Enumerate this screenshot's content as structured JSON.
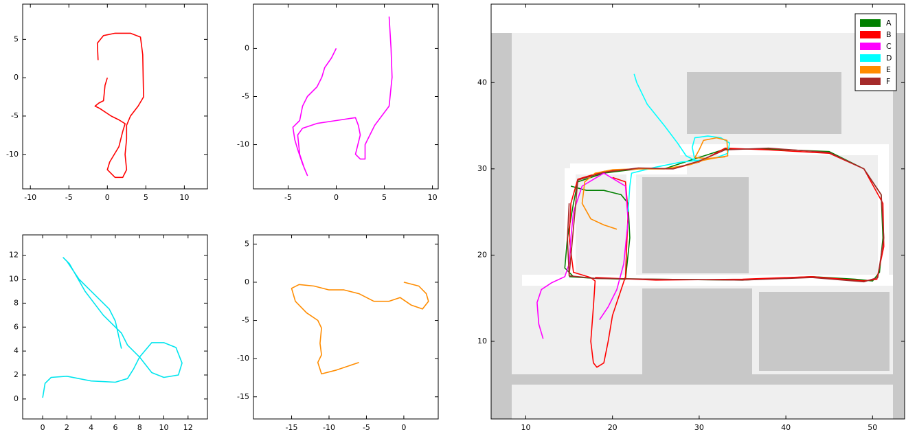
{
  "chart_data": [
    {
      "type": "line",
      "xlim": [
        -11,
        13
      ],
      "ylim": [
        -14.5,
        9.6
      ],
      "xticks": [
        -10,
        -5,
        0,
        5,
        10
      ],
      "yticks": [
        -10,
        -5,
        0,
        5
      ],
      "series": [
        {
          "color": "#ff0000",
          "x": [
            -1.2,
            -1.3,
            -0.5,
            1,
            3,
            4.3,
            4.6,
            4.7,
            4,
            3,
            2.5,
            2.5,
            2.3,
            2.5,
            2,
            1,
            0,
            0.3,
            1.5,
            2,
            2.3,
            1.5,
            0.5,
            -1,
            -1.6,
            -1.1,
            -0.5,
            -0.3,
            0
          ],
          "values": [
            2.3,
            4.5,
            5.5,
            5.8,
            5.8,
            5.3,
            3,
            -2.5,
            -3.7,
            -5,
            -6.2,
            -8,
            -10,
            -12,
            -13,
            -13,
            -12,
            -11,
            -9,
            -7,
            -6,
            -5.5,
            -5,
            -4,
            -3.7,
            -3.3,
            -3,
            -1,
            0
          ]
        }
      ]
    },
    {
      "type": "line",
      "xlim": [
        -8.6,
        10.6
      ],
      "ylim": [
        -14.6,
        4.6
      ],
      "xticks": [
        -5,
        0,
        5,
        10
      ],
      "yticks": [
        -10,
        -5,
        0
      ],
      "series": [
        {
          "color": "#ff00ff",
          "x": [
            0,
            -0.5,
            -1.2,
            -1.5,
            -2,
            -3,
            -3.5,
            -3.8,
            -4.5,
            -4.3,
            -4,
            -3.5,
            -3,
            -3.3,
            -3.8,
            -4,
            -3.5,
            -2,
            0,
            2,
            2.3,
            2.5,
            2,
            2.5,
            3,
            3,
            4,
            5.5,
            5.8,
            5.7,
            5.5
          ],
          "values": [
            0,
            -1,
            -2,
            -3,
            -4,
            -5,
            -6,
            -7.5,
            -8.2,
            -9.5,
            -10.5,
            -12,
            -13.2,
            -12.5,
            -11,
            -9,
            -8.3,
            -7.8,
            -7.5,
            -7.2,
            -8,
            -9,
            -11,
            -11.5,
            -11.5,
            -10,
            -8,
            -6,
            -3,
            0,
            3.3
          ]
        }
      ]
    },
    {
      "type": "line",
      "xlim": [
        -1.65,
        13.6
      ],
      "ylim": [
        -1.67,
        13.7
      ],
      "xticks": [
        0,
        2,
        4,
        6,
        8,
        10,
        12
      ],
      "yticks": [
        0,
        2,
        4,
        6,
        8,
        10,
        12
      ],
      "series": [
        {
          "color": "#00e5ee",
          "x": [
            0,
            0.2,
            0.7,
            2,
            4,
            6,
            7,
            7.5,
            8,
            9,
            10,
            11,
            11.5,
            11.2,
            10,
            9,
            8,
            7,
            6.5,
            5,
            3.5,
            2.2,
            1.7,
            2,
            3,
            4.5,
            5.5,
            6,
            6.5
          ],
          "values": [
            0.1,
            1.3,
            1.8,
            1.9,
            1.5,
            1.4,
            1.7,
            2.5,
            3.5,
            4.7,
            4.7,
            4.3,
            3,
            2,
            1.8,
            2.2,
            3.5,
            4.5,
            5.5,
            7,
            9,
            11.3,
            11.8,
            11.5,
            10,
            8.5,
            7.5,
            6.5,
            4.2
          ]
        }
      ]
    },
    {
      "type": "line",
      "xlim": [
        -20.1,
        4.6
      ],
      "ylim": [
        -17.9,
        6.2
      ],
      "xticks": [
        -15,
        -10,
        -5,
        0
      ],
      "yticks": [
        -15,
        -10,
        -5,
        0,
        5
      ],
      "series": [
        {
          "color": "#ff8c00",
          "x": [
            0,
            2,
            3,
            3.3,
            2.5,
            1,
            -0.5,
            -2,
            -4,
            -6,
            -8,
            -10,
            -12,
            -14,
            -15,
            -14.5,
            -13,
            -11.5,
            -11,
            -11.2,
            -11,
            -11.5,
            -11,
            -9,
            -6
          ],
          "values": [
            0,
            -0.5,
            -1.5,
            -2.5,
            -3.5,
            -3,
            -2,
            -2.5,
            -2.5,
            -1.5,
            -1,
            -1,
            -0.5,
            -0.3,
            -0.8,
            -2.5,
            -4,
            -5,
            -6,
            -8,
            -9.5,
            -10.5,
            -12,
            -11.5,
            -10.5
          ]
        }
      ]
    },
    {
      "type": "line",
      "xlim": [
        6,
        53.7
      ],
      "ylim": [
        1,
        49.1
      ],
      "xticks": [
        10,
        20,
        30,
        40,
        50
      ],
      "yticks": [
        10,
        20,
        30,
        40
      ],
      "legend": "upper right",
      "series": [
        {
          "name": "A",
          "color": "#008000",
          "x": [
            15.2,
            17,
            19,
            21,
            21.8,
            22,
            21.5,
            18,
            15.5,
            14.5,
            14.8,
            15.5,
            16,
            19,
            23,
            26,
            29,
            33,
            38,
            45,
            49,
            51,
            51.2,
            50.8,
            50,
            48,
            43,
            35,
            25,
            18,
            15
          ],
          "values": [
            28,
            27.5,
            27.5,
            27,
            26,
            22,
            17.2,
            17.3,
            17.5,
            18.5,
            22,
            26,
            28.5,
            29.5,
            30,
            30,
            31,
            32.3,
            32.3,
            32,
            30,
            27,
            22,
            18,
            17,
            17.2,
            17.5,
            17.1,
            17.2,
            17.3,
            17.5
          ]
        },
        {
          "name": "B",
          "color": "#ff0000",
          "x": [
            20,
            21.5,
            21.8,
            21.5,
            20,
            19.5,
            19,
            18.2,
            17.8,
            17.5,
            17.8,
            18,
            17.5,
            15.5,
            15,
            15.2,
            16,
            19,
            23,
            27,
            30,
            33,
            38,
            45,
            49,
            51.2,
            51.3,
            50.5,
            49,
            43,
            35,
            25,
            18
          ],
          "values": [
            29,
            28.5,
            25,
            17.5,
            13,
            10,
            7.5,
            7,
            7.5,
            10,
            14,
            17,
            17.4,
            18,
            22,
            26,
            28.8,
            29.7,
            30,
            30,
            30.8,
            32.4,
            32.2,
            31.8,
            30,
            26,
            21,
            17.2,
            17,
            17.5,
            17.2,
            17.1,
            17.4
          ]
        },
        {
          "name": "C",
          "color": "#ff00ff",
          "x": [
            12,
            11.5,
            11.3,
            11.8,
            13,
            14.5,
            15,
            15.2,
            15.5,
            16.5,
            19,
            21.5,
            21.8,
            21.3,
            20.5,
            19.5,
            18.5
          ],
          "values": [
            10.3,
            12,
            14.5,
            16,
            16.8,
            17.5,
            19,
            22,
            25,
            28,
            29.5,
            28,
            24,
            19,
            16,
            14,
            12.5
          ]
        },
        {
          "name": "D",
          "color": "#00ffff",
          "x": [
            22.5,
            22.8,
            24,
            26,
            27.5,
            28.5,
            29.5,
            29.2,
            29.5,
            31,
            32.5,
            33.5,
            33.3,
            32,
            30,
            28,
            25,
            22.2,
            22,
            21.8
          ],
          "values": [
            41,
            40,
            37.5,
            35,
            33,
            31.5,
            31,
            32.5,
            33.6,
            33.8,
            33.6,
            33,
            31.8,
            31.3,
            31,
            30.8,
            30.2,
            29.5,
            28,
            25
          ]
        },
        {
          "name": "E",
          "color": "#ff8c00",
          "x": [
            20.5,
            19,
            17.5,
            16.5,
            16.8,
            18,
            20,
            23,
            26,
            29,
            30.5,
            31.5,
            33.3,
            33.2,
            32,
            30.5,
            30,
            29.5,
            31,
            33
          ],
          "values": [
            23,
            23.5,
            24.2,
            26,
            28.5,
            29.5,
            29.9,
            30,
            30,
            30.5,
            31,
            31.2,
            31.5,
            33.3,
            33.6,
            33.3,
            32.2,
            31.3,
            31.2,
            31.4
          ]
        },
        {
          "name": "F",
          "color": "#a52a2a",
          "x": [
            15,
            16,
            19,
            23,
            27,
            30,
            33,
            38,
            45,
            49,
            51,
            51.3,
            50.6,
            49,
            43,
            35,
            25,
            18,
            15,
            14.8,
            15
          ],
          "values": [
            17.6,
            28.7,
            29.6,
            30.1,
            30,
            30.9,
            32.2,
            32.4,
            31.9,
            30,
            27,
            22,
            17.4,
            16.9,
            17.4,
            17.1,
            17.2,
            17.3,
            17.6,
            22,
            26
          ]
        }
      ]
    }
  ]
}
